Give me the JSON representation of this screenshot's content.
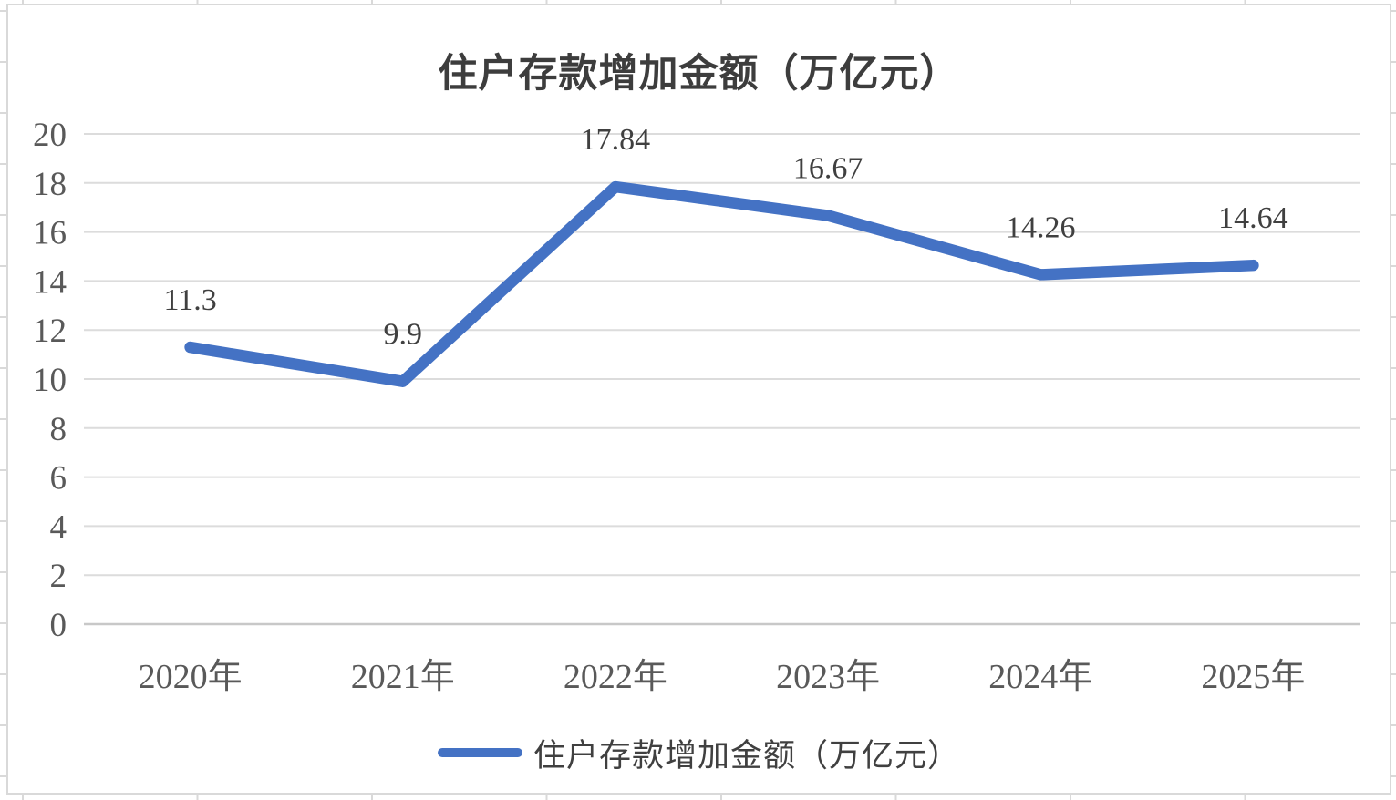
{
  "chart_data": {
    "type": "line",
    "title": "住户存款增加金额（万亿元）",
    "categories": [
      "2020年",
      "2021年",
      "2022年",
      "2023年",
      "2024年",
      "2025年"
    ],
    "series": [
      {
        "name": "住户存款增加金额（万亿元）",
        "values": [
          11.3,
          9.9,
          17.84,
          16.67,
          14.26,
          14.64
        ]
      }
    ],
    "data_labels": [
      "11.3",
      "9.9",
      "17.84",
      "16.67",
      "14.26",
      "14.64"
    ],
    "y_ticks": [
      0,
      2,
      4,
      6,
      8,
      10,
      12,
      14,
      16,
      18,
      20
    ],
    "ylim": [
      0,
      20
    ],
    "grid": true,
    "legend_position": "bottom",
    "colors": {
      "line": "#4472C4",
      "gridline": "#dcdcdc",
      "zero_axis": "#c8c8c8",
      "axis_text": "#595959",
      "data_label_text": "#404040",
      "title_text": "#3d3d3d"
    }
  }
}
